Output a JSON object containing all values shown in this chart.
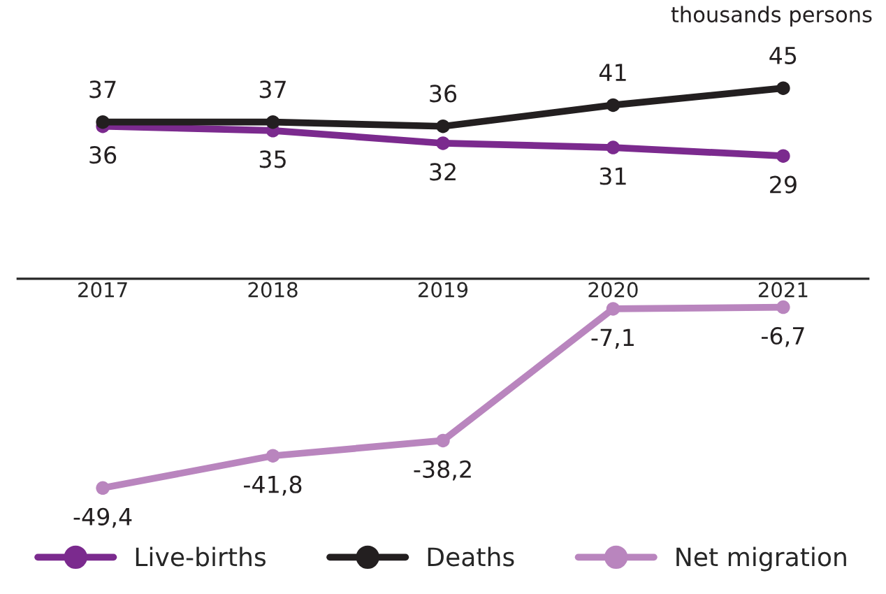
{
  "chart_data": {
    "type": "line",
    "categories": [
      "2017",
      "2018",
      "2019",
      "2020",
      "2021"
    ],
    "series": [
      {
        "name": "Live-births",
        "color": "#7b2a8e",
        "values": [
          36,
          35,
          32,
          31,
          29
        ],
        "value_labels": [
          "36",
          "35",
          "32",
          "31",
          "29"
        ]
      },
      {
        "name": "Deaths",
        "color": "#231f20",
        "values": [
          37,
          37,
          36,
          41,
          45
        ],
        "value_labels": [
          "37",
          "37",
          "36",
          "41",
          "45"
        ]
      },
      {
        "name": "Net migration",
        "color": "#b985be",
        "values": [
          -49.4,
          -41.8,
          -38.2,
          -7.1,
          -6.7
        ],
        "value_labels": [
          "-49,4",
          "-41,8",
          "-38,2",
          "-7,1",
          "-6,7"
        ]
      }
    ],
    "annotations": [
      "thousands persons"
    ],
    "marker": "circle",
    "line_style": "solid",
    "legend": "bottom",
    "grid": false,
    "tick_labels": "x"
  }
}
